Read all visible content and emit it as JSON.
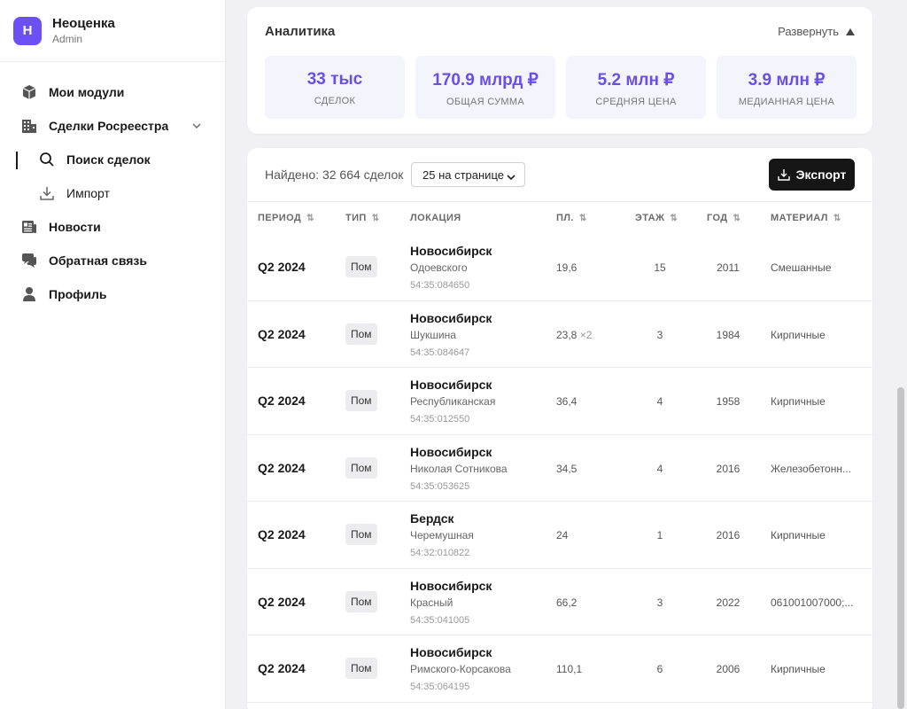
{
  "brand": {
    "logo_letter": "Н",
    "name": "Неоценка",
    "role": "Admin",
    "accent": "#6d4ff6"
  },
  "nav": {
    "modules": "Мои модули",
    "deals": "Сделки Росреестра",
    "search": "Поиск сделок",
    "import": "Импорт",
    "news": "Новости",
    "feedback": "Обратная связь",
    "profile": "Профиль"
  },
  "analytics": {
    "title": "Аналитика",
    "expand_label": "Развернуть",
    "stats": [
      {
        "value": "33 тыс",
        "label": "СДЕЛОК"
      },
      {
        "value": "170.9 млрд ₽",
        "label": "ОБЩАЯ СУММА"
      },
      {
        "value": "5.2 млн ₽",
        "label": "СРЕДНЯЯ ЦЕНА"
      },
      {
        "value": "3.9 млн ₽",
        "label": "МЕДИАННАЯ ЦЕНА"
      }
    ]
  },
  "table": {
    "found": "Найдено: 32 664 сделок",
    "per_page": "25 на странице",
    "export_label": "Экспорт",
    "headers": {
      "period": "ПЕРИОД",
      "type": "ТИП",
      "location": "ЛОКАЦИЯ",
      "area": "ПЛ.",
      "floor": "ЭТАЖ",
      "year": "ГОД",
      "material": "МАТЕРИАЛ"
    },
    "sort_glyph": "⇅",
    "rows": [
      {
        "period": "Q2 2024",
        "type": "Пом",
        "city": "Новосибирск",
        "street": "Одоевского",
        "cad": "54:35:084650",
        "area": "19,6",
        "mult": "",
        "floor": "15",
        "year": "2011",
        "material": "Смешанные"
      },
      {
        "period": "Q2 2024",
        "type": "Пом",
        "city": "Новосибирск",
        "street": "Шукшина",
        "cad": "54:35:084647",
        "area": "23,8",
        "mult": "×2",
        "floor": "3",
        "year": "1984",
        "material": "Кирпичные"
      },
      {
        "period": "Q2 2024",
        "type": "Пом",
        "city": "Новосибирск",
        "street": "Республиканская",
        "cad": "54:35:012550",
        "area": "36,4",
        "mult": "",
        "floor": "4",
        "year": "1958",
        "material": "Кирпичные"
      },
      {
        "period": "Q2 2024",
        "type": "Пом",
        "city": "Новосибирск",
        "street": "Николая Сотникова",
        "cad": "54:35:053625",
        "area": "34,5",
        "mult": "",
        "floor": "4",
        "year": "2016",
        "material": "Железобетонн..."
      },
      {
        "period": "Q2 2024",
        "type": "Пом",
        "city": "Бердск",
        "street": "Черемушная",
        "cad": "54:32:010822",
        "area": "24",
        "mult": "",
        "floor": "1",
        "year": "2016",
        "material": "Кирпичные"
      },
      {
        "period": "Q2 2024",
        "type": "Пом",
        "city": "Новосибирск",
        "street": "Красный",
        "cad": "54:35:041005",
        "area": "66,2",
        "mult": "",
        "floor": "3",
        "year": "2022",
        "material": "061001007000;..."
      },
      {
        "period": "Q2 2024",
        "type": "Пом",
        "city": "Новосибирск",
        "street": "Римского-Корсакова",
        "cad": "54:35:064195",
        "area": "110,1",
        "mult": "",
        "floor": "6",
        "year": "2006",
        "material": "Кирпичные"
      }
    ]
  }
}
